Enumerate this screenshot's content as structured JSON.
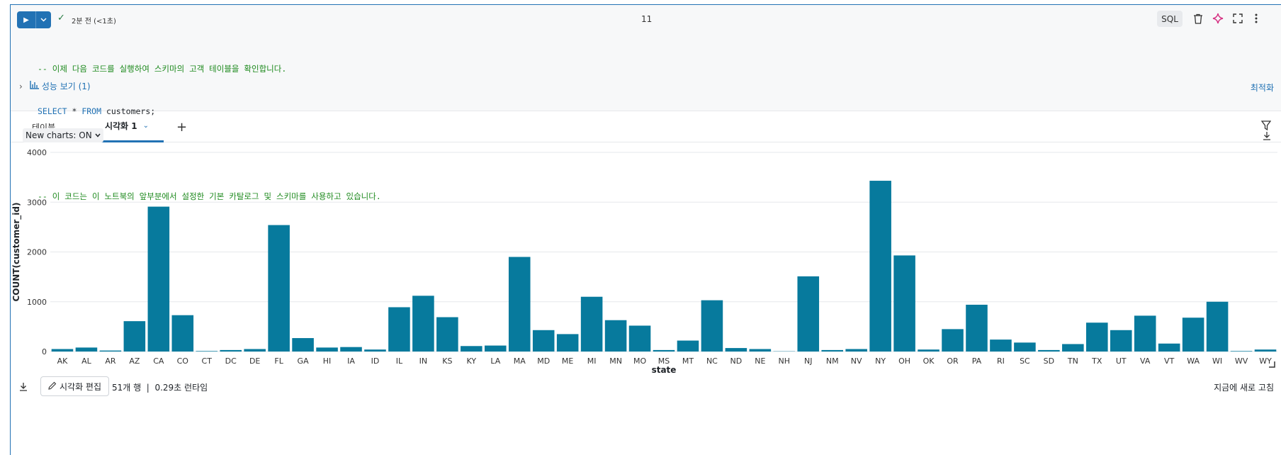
{
  "cell": {
    "status_text": "2분 전 (<1초)",
    "cell_number": "11",
    "language": "SQL",
    "code_lines": [
      {
        "type": "comment",
        "text": "-- 이제 다음 코드를 실행하여 스키마의 고객 테이블을 확인합니다."
      },
      {
        "type": "sql",
        "kw1": "SELECT",
        "mid": " * ",
        "kw2": "FROM",
        "rest": " customers;"
      },
      {
        "type": "blank",
        "text": ""
      },
      {
        "type": "comment",
        "text": "-- 이 코드는 이 노트북의 앞부분에서 설정한 기본 카탈로그 및 스키마를 사용하고 있습니다."
      }
    ],
    "perf_label": "성능 보기 (1)",
    "optimize_label": "최적화"
  },
  "tabs": {
    "table_label": "테이블",
    "viz_label": "시각화 1",
    "add_label": "+"
  },
  "new_charts_label": "New charts: ON",
  "footer": {
    "edit_label": "시각화 편집",
    "meta": "51개 행  |  0.29초 런타임",
    "refresh": "지금에 새로 고침"
  },
  "colors": {
    "accent": "#2272b4",
    "bar": "#077a9d",
    "comment": "#1e8a1e"
  },
  "chart_data": {
    "type": "bar",
    "xlabel": "state",
    "ylabel": "COUNT(customer_id)",
    "ylim": [
      0,
      4000
    ],
    "yticks": [
      0,
      1000,
      2000,
      3000,
      4000
    ],
    "grid": true,
    "categories": [
      "AK",
      "AL",
      "AR",
      "AZ",
      "CA",
      "CO",
      "CT",
      "DC",
      "DE",
      "FL",
      "GA",
      "HI",
      "IA",
      "ID",
      "IL",
      "IN",
      "KS",
      "KY",
      "LA",
      "MA",
      "MD",
      "ME",
      "MI",
      "MN",
      "MO",
      "MS",
      "MT",
      "NC",
      "ND",
      "NE",
      "NH",
      "NJ",
      "NM",
      "NV",
      "NY",
      "OH",
      "OK",
      "OR",
      "PA",
      "RI",
      "SC",
      "SD",
      "TN",
      "TX",
      "UT",
      "VA",
      "VT",
      "WA",
      "WI",
      "WV",
      "WY"
    ],
    "values": [
      50,
      80,
      20,
      610,
      2910,
      730,
      10,
      30,
      50,
      2540,
      270,
      80,
      90,
      40,
      890,
      1120,
      690,
      110,
      120,
      1900,
      430,
      350,
      1100,
      630,
      520,
      30,
      220,
      1030,
      70,
      50,
      5,
      1510,
      30,
      50,
      3430,
      1930,
      40,
      450,
      940,
      240,
      180,
      30,
      150,
      580,
      430,
      720,
      160,
      680,
      1000,
      10,
      40
    ]
  }
}
